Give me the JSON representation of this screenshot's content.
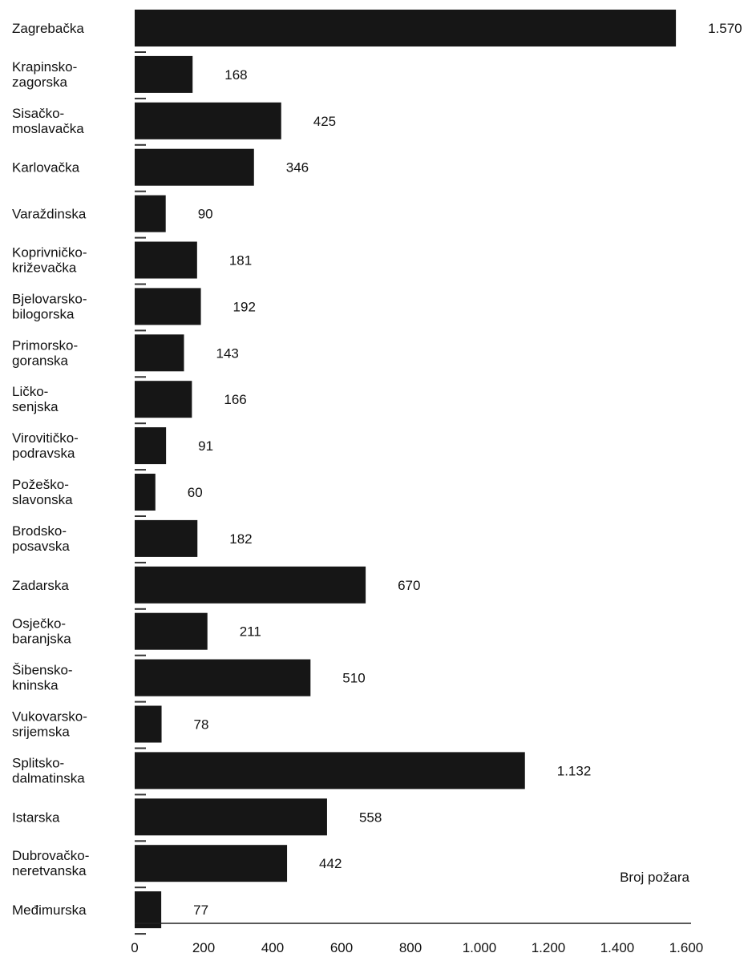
{
  "chart_data": {
    "type": "bar",
    "orientation": "horizontal",
    "categories": [
      "Zagrebačka",
      "Krapinsko-zagorska",
      "Sisačko-moslavačka",
      "Karlovačka",
      "Varaždinska",
      "Koprivničko-križevačka",
      "Bjelovarsko-bilogorska",
      "Primorsko-goranska",
      "Ličko-senjska",
      "Virovitičko-podravska",
      "Požeško-slavonska",
      "Brodsko-posavska",
      "Zadarska",
      "Osječko-baranjska",
      "Šibensko-kninska",
      "Vukovarsko-srijemska",
      "Splitsko-dalmatinska",
      "Istarska",
      "Dubrovačko-neretvanska",
      "Međimurska"
    ],
    "category_label_lines": [
      [
        "Zagrebačka"
      ],
      [
        "Krapinsko-",
        "zagorska"
      ],
      [
        "Sisačko-",
        "moslavačka"
      ],
      [
        "Karlovačka"
      ],
      [
        "Varaždinska"
      ],
      [
        "Koprivničko-",
        "križevačka"
      ],
      [
        "Bjelovarsko-",
        "bilogorska"
      ],
      [
        "Primorsko-",
        "goranska"
      ],
      [
        "Ličko-",
        "senjska"
      ],
      [
        "Virovitičko-",
        "podravska"
      ],
      [
        "Požeško-",
        "slavonska"
      ],
      [
        "Brodsko-",
        "posavska"
      ],
      [
        "Zadarska"
      ],
      [
        "Osječko-",
        "baranjska"
      ],
      [
        "Šibensko-",
        "kninska"
      ],
      [
        "Vukovarsko-",
        "srijemska"
      ],
      [
        "Splitsko-",
        "dalmatinska"
      ],
      [
        "Istarska"
      ],
      [
        "Dubrovačko-",
        "neretvanska"
      ],
      [
        "Međimurska"
      ]
    ],
    "values": [
      1570,
      168,
      425,
      346,
      90,
      181,
      192,
      143,
      166,
      91,
      60,
      182,
      670,
      211,
      510,
      78,
      1132,
      558,
      442,
      77
    ],
    "value_labels": [
      "1.570",
      "168",
      "425",
      "346",
      "90",
      "181",
      "192",
      "143",
      "166",
      "91",
      "60",
      "182",
      "670",
      "211",
      "510",
      "78",
      "1.132",
      "558",
      "442",
      "77"
    ],
    "xlim": [
      0,
      1600
    ],
    "x_ticks": [
      0,
      200,
      400,
      600,
      800,
      1000,
      1200,
      1400,
      1600
    ],
    "x_tick_labels": [
      "0",
      "200",
      "400",
      "600",
      "800",
      "1.000",
      "1.200",
      "1.400",
      "1.600"
    ],
    "xlabel": "Broj požara",
    "title": "",
    "grid": false,
    "bar_color": "#161616"
  }
}
